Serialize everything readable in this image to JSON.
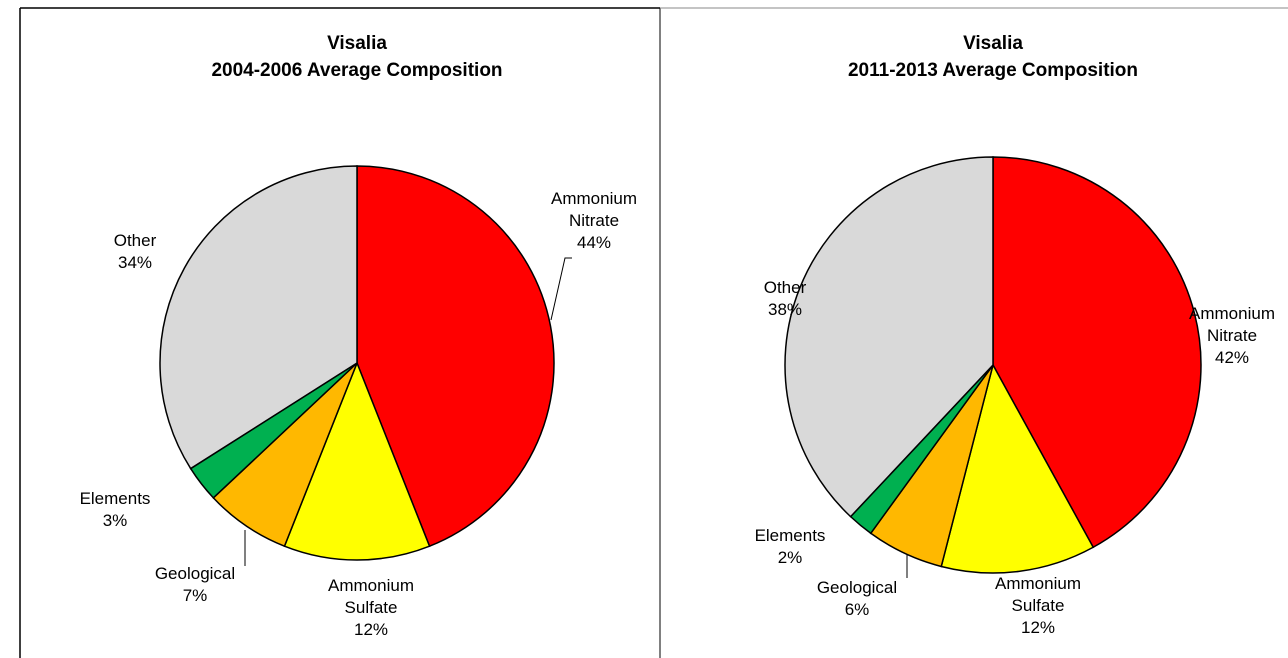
{
  "chart_data": [
    {
      "type": "pie",
      "title": "Visalia",
      "subtitle": "2004-2006 Average Composition",
      "categories": [
        "Ammonium Nitrate",
        "Ammonium Sulfate",
        "Geological",
        "Elements",
        "Other"
      ],
      "values": [
        44,
        12,
        7,
        3,
        34
      ],
      "value_labels": [
        "44%",
        "12%",
        "7%",
        "3%",
        "34%"
      ],
      "colors": [
        "#ff0000",
        "#ffff00",
        "#ffb800",
        "#00b050",
        "#d9d9d9"
      ]
    },
    {
      "type": "pie",
      "title": "Visalia",
      "subtitle": "2011-2013 Average Composition",
      "categories": [
        "Ammonium Nitrate",
        "Ammonium Sulfate",
        "Geological",
        "Elements",
        "Other"
      ],
      "values": [
        42,
        12,
        6,
        2,
        38
      ],
      "value_labels": [
        "42%",
        "12%",
        "6%",
        "2%",
        "38%"
      ],
      "colors": [
        "#ff0000",
        "#ffff00",
        "#ffb800",
        "#00b050",
        "#d9d9d9"
      ]
    }
  ]
}
